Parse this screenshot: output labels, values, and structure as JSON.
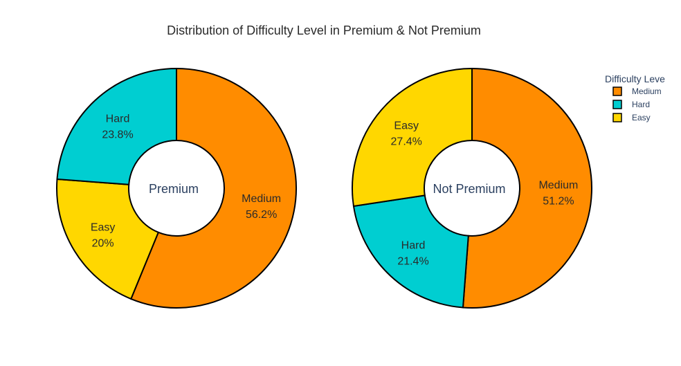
{
  "chart_data": {
    "type": "pie",
    "title": "Distribution of Difficulty Level in Premium & Not Premium",
    "legend": {
      "title": "Difficulty Leve",
      "placement": "top-right",
      "items": [
        {
          "label": "Medium",
          "color": "#ff8c00"
        },
        {
          "label": "Hard",
          "color": "#00ced1"
        },
        {
          "label": "Easy",
          "color": "#ffd700"
        }
      ]
    },
    "charts": [
      {
        "center_label": "Premium",
        "slices": [
          {
            "label": "Medium",
            "value": 56.2,
            "text": "56.2%",
            "color": "#ff8c00"
          },
          {
            "label": "Easy",
            "value": 20.0,
            "text": "20%",
            "color": "#ffd700"
          },
          {
            "label": "Hard",
            "value": 23.8,
            "text": "23.8%",
            "color": "#00ced1"
          }
        ]
      },
      {
        "center_label": "Not Premium",
        "slices": [
          {
            "label": "Medium",
            "value": 51.2,
            "text": "51.2%",
            "color": "#ff8c00"
          },
          {
            "label": "Hard",
            "value": 21.4,
            "text": "21.4%",
            "color": "#00ced1"
          },
          {
            "label": "Easy",
            "value": 27.4,
            "text": "27.4%",
            "color": "#ffd700"
          }
        ]
      }
    ]
  }
}
